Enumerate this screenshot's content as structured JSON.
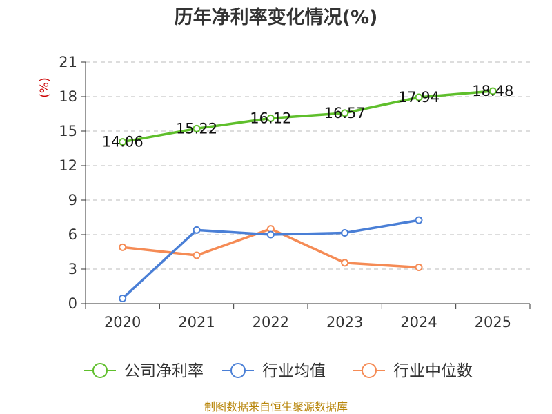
{
  "chart_data": {
    "type": "line",
    "title": "历年净利率变化情况(%)",
    "ylabel": "(%)",
    "xlabel": "",
    "categories": [
      "2020",
      "2021",
      "2022",
      "2023",
      "2024",
      "2025"
    ],
    "ylim": [
      0,
      21
    ],
    "yticks": [
      0,
      3,
      6,
      9,
      12,
      15,
      18,
      21
    ],
    "grid": true,
    "legend_position": "bottom",
    "series": [
      {
        "name": "公司净利率",
        "color": "#5fbf2c",
        "values": [
          14.06,
          15.22,
          16.12,
          16.57,
          17.94,
          18.48
        ],
        "labels": [
          "14.06",
          "15.22",
          "16.12",
          "16.57",
          "17.94",
          "18.48"
        ]
      },
      {
        "name": "行业均值",
        "color": "#4a7fd6",
        "values": [
          0.45,
          6.4,
          6.0,
          6.15,
          7.25,
          null
        ]
      },
      {
        "name": "行业中位数",
        "color": "#f58b55",
        "values": [
          4.9,
          4.2,
          6.5,
          3.55,
          3.15,
          null
        ]
      }
    ],
    "source": "制图数据来自恒生聚源数据库"
  }
}
